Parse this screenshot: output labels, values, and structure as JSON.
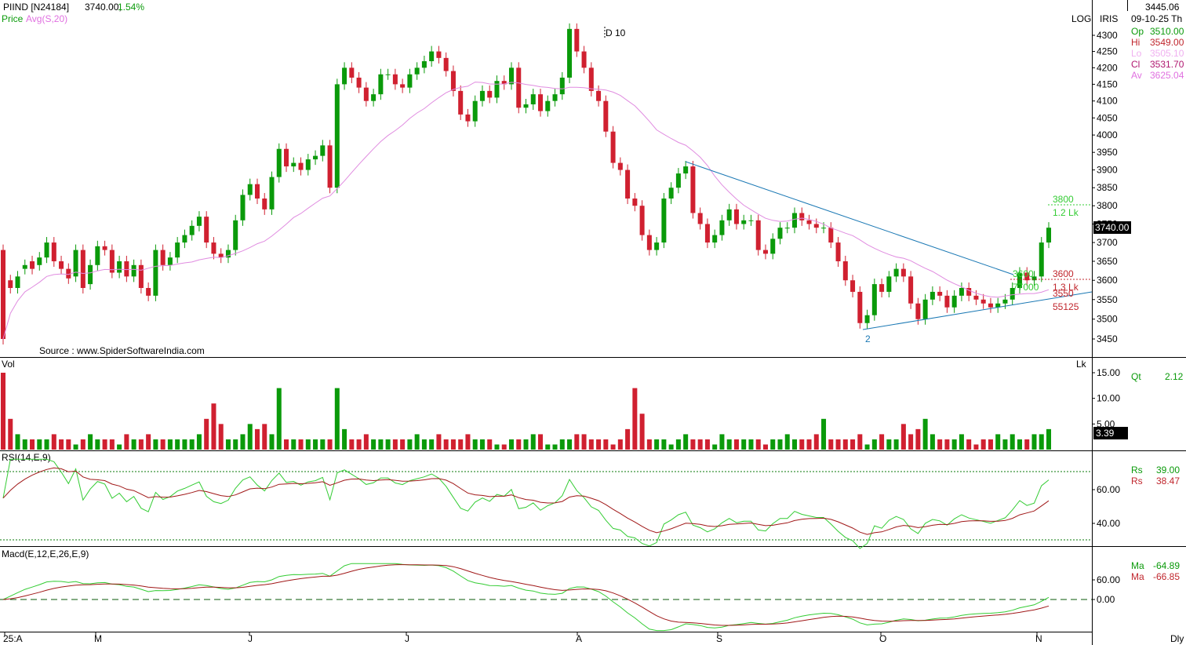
{
  "header": {
    "symbol": "PIIND [N24184]",
    "last": "3740.00,",
    "change": "1.54%",
    "price_label": "Price",
    "avg_label": "Avg(S,20)",
    "log_label": "LOG",
    "iris_label": "IRIS",
    "annotation_d10": "D 10",
    "source": "Source : www.SpiderSoftwareIndia.com"
  },
  "info_panel": {
    "cursor_price": "3445.06",
    "date": "09-10-25 Th",
    "rows": [
      {
        "label": "Op",
        "value": "3510.00",
        "color": "#0a9a0a"
      },
      {
        "label": "Hi",
        "value": "3549.00",
        "color": "#c0262d"
      },
      {
        "label": "Lo",
        "value": "3505.10",
        "color": "#f0b0f0"
      },
      {
        "label": "Cl",
        "value": "3531.70",
        "color": "#b01870"
      },
      {
        "label": "Av",
        "value": "3625.04",
        "color": "#e070e0"
      }
    ],
    "qt_label": "Qt",
    "qt_value": "2.12",
    "rsi_rows": [
      {
        "label": "Rs",
        "value": "39.00",
        "color": "#0a9a0a"
      },
      {
        "label": "Rs",
        "value": "38.47",
        "color": "#c0262d"
      }
    ],
    "macd_rows": [
      {
        "label": "Ma",
        "value": "-64.89",
        "color": "#0a9a0a"
      },
      {
        "label": "Ma",
        "value": "-66.85",
        "color": "#c0262d"
      }
    ]
  },
  "panels": {
    "vol_label": "Vol",
    "vol_unit": "Lk",
    "vol_last": "3.39",
    "rsi_label": "RSI(14,E,9)",
    "macd_label": "Macd(E,12,E,26,E,9)",
    "price_box": "3740.00",
    "dly_label": "Dly"
  },
  "annotations": {
    "target_price": "3800",
    "target_qty": "1.2 Lk",
    "green_price": "3600",
    "green_qty": "77000",
    "red_price_1": "3600",
    "red_qty_1": "1.3 Lk",
    "red_price_2": "3550",
    "red_qty_2": "55125",
    "wave_label": "2"
  },
  "colors": {
    "up": "#0a9a0a",
    "down": "#d02030",
    "ma": "#e08ce0",
    "trendline": "#1a78b4",
    "rsi_fast": "#33cc33",
    "rsi_slow": "#a01818"
  },
  "chart_data": {
    "type": "candlestick",
    "scale": "log",
    "x_tick_labels": [
      "25:A",
      "M",
      "J",
      "J",
      "A",
      "S",
      "O",
      "N"
    ],
    "price_ticks": [
      4300,
      4250,
      4200,
      4150,
      4100,
      4050,
      4000,
      3950,
      3900,
      3850,
      3800,
      3750,
      3700,
      3650,
      3600,
      3550,
      3500,
      3450
    ],
    "volume_ticks": [
      "15.00",
      "10.00",
      "5.00"
    ],
    "rsi_ticks": [
      "60.00",
      "40.00"
    ],
    "rsi_bands": [
      70,
      30
    ],
    "macd_ticks": [
      "60.00",
      "0.00"
    ],
    "close": [
      3450,
      3580,
      3610,
      3640,
      3630,
      3660,
      3700,
      3650,
      3630,
      3605,
      3680,
      3580,
      3640,
      3690,
      3680,
      3620,
      3650,
      3610,
      3640,
      3580,
      3560,
      3680,
      3640,
      3660,
      3700,
      3720,
      3745,
      3770,
      3700,
      3670,
      3660,
      3680,
      3760,
      3830,
      3860,
      3820,
      3790,
      3880,
      3960,
      3910,
      3920,
      3900,
      3930,
      3940,
      3970,
      3850,
      4150,
      4200,
      4170,
      4140,
      4100,
      4120,
      4180,
      4180,
      4150,
      4140,
      4180,
      4200,
      4220,
      4250,
      4230,
      4190,
      4130,
      4060,
      4040,
      4100,
      4130,
      4110,
      4160,
      4150,
      4200,
      4080,
      4090,
      4120,
      4070,
      4100,
      4120,
      4170,
      4320,
      4250,
      4200,
      4130,
      4100,
      4010,
      3920,
      3900,
      3820,
      3800,
      3720,
      3680,
      3700,
      3820,
      3850,
      3890,
      3910,
      3780,
      3750,
      3700,
      3720,
      3760,
      3790,
      3750,
      3760,
      3760,
      3680,
      3670,
      3710,
      3740,
      3740,
      3780,
      3760,
      3750,
      3740,
      3740,
      3700,
      3650,
      3600,
      3570,
      3490,
      3510,
      3590,
      3570,
      3610,
      3630,
      3610,
      3540,
      3500,
      3550,
      3570,
      3560,
      3530,
      3560,
      3580,
      3560,
      3550,
      3540,
      3530,
      3540,
      3550,
      3580,
      3620,
      3600,
      3610,
      3700,
      3740
    ],
    "open": [
      3680,
      3600,
      3580,
      3630,
      3650,
      3640,
      3660,
      3700,
      3650,
      3630,
      3610,
      3680,
      3590,
      3640,
      3690,
      3680,
      3620,
      3650,
      3610,
      3640,
      3580,
      3560,
      3680,
      3640,
      3660,
      3700,
      3720,
      3745,
      3770,
      3700,
      3670,
      3660,
      3680,
      3760,
      3830,
      3860,
      3820,
      3790,
      3880,
      3960,
      3910,
      3920,
      3900,
      3930,
      3940,
      3970,
      3850,
      4150,
      4200,
      4170,
      4140,
      4100,
      4120,
      4180,
      4180,
      4150,
      4140,
      4180,
      4200,
      4220,
      4250,
      4230,
      4190,
      4130,
      4060,
      4040,
      4100,
      4130,
      4110,
      4160,
      4150,
      4200,
      4080,
      4090,
      4120,
      4070,
      4100,
      4120,
      4170,
      4320,
      4250,
      4200,
      4130,
      4100,
      4010,
      3920,
      3900,
      3820,
      3800,
      3720,
      3680,
      3700,
      3820,
      3850,
      3890,
      3910,
      3780,
      3750,
      3700,
      3720,
      3760,
      3790,
      3750,
      3760,
      3760,
      3680,
      3670,
      3710,
      3740,
      3740,
      3780,
      3760,
      3750,
      3740,
      3740,
      3700,
      3650,
      3600,
      3570,
      3490,
      3510,
      3590,
      3570,
      3610,
      3630,
      3610,
      3540,
      3500,
      3550,
      3570,
      3560,
      3530,
      3560,
      3580,
      3560,
      3550,
      3540,
      3530,
      3540,
      3550,
      3580,
      3620,
      3600,
      3610,
      3700
    ],
    "volume": [
      15,
      6,
      3,
      2,
      2,
      2,
      2,
      3,
      2,
      2,
      1,
      2,
      3,
      2,
      2,
      2,
      1,
      3,
      2,
      2,
      3,
      2,
      2,
      2,
      2,
      2,
      2,
      3,
      6,
      9,
      5,
      2,
      2,
      3,
      5,
      4,
      5,
      3,
      12,
      2,
      2,
      2,
      2,
      2,
      2,
      2,
      12,
      4,
      2,
      2,
      3,
      2,
      2,
      2,
      2,
      2,
      2,
      3,
      2,
      2,
      3,
      2,
      2,
      2,
      3,
      2,
      2,
      2,
      1,
      1,
      2,
      2,
      2,
      3,
      3,
      1,
      1,
      2,
      2,
      3,
      3,
      2,
      2,
      2,
      1,
      2,
      4,
      12,
      7,
      2,
      2,
      2,
      1,
      2,
      3,
      2,
      2,
      2,
      1,
      3,
      2,
      2,
      2,
      2,
      2,
      1,
      2,
      2,
      3,
      2,
      2,
      2,
      3,
      6,
      2,
      2,
      2,
      2,
      3,
      1,
      2,
      3,
      2,
      2,
      5,
      3,
      4,
      6,
      3,
      2,
      2,
      2,
      3,
      2,
      1,
      2,
      2,
      3,
      2,
      3,
      2,
      2,
      3,
      3,
      4
    ],
    "price_axis_markers": {
      "last_close": 3740
    }
  }
}
